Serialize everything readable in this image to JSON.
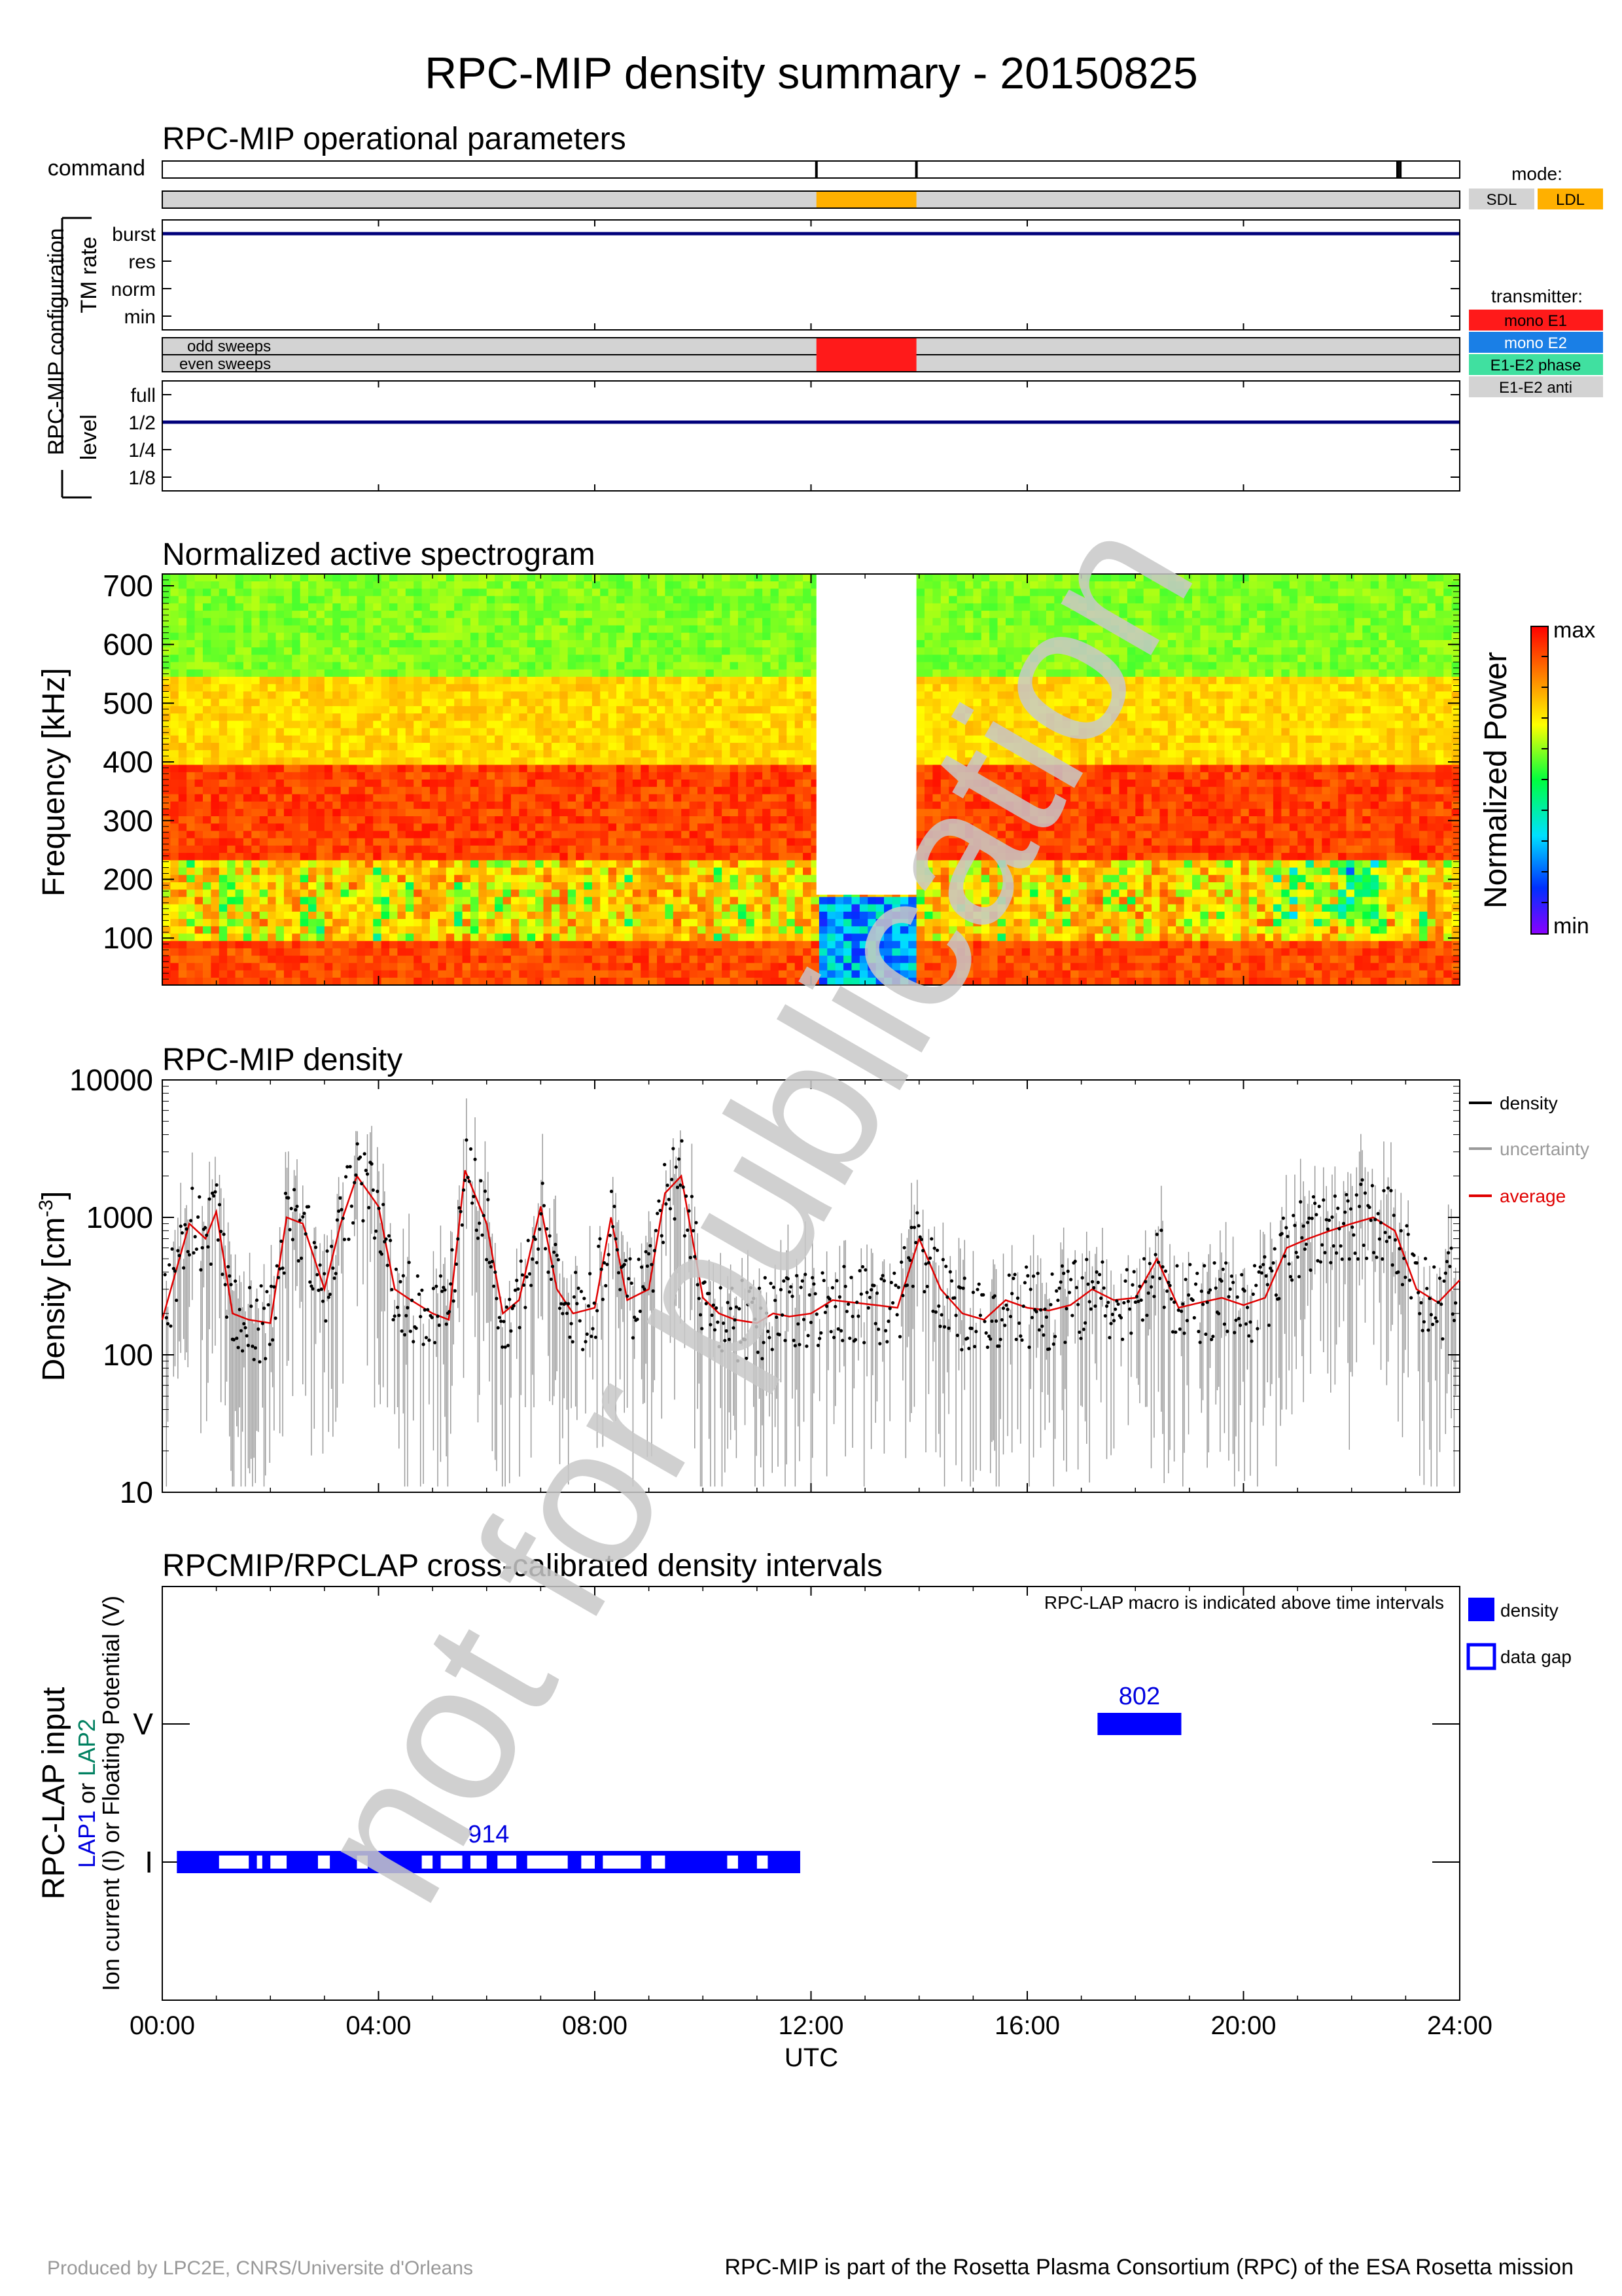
{
  "title": "RPC-MIP density summary - 20150825",
  "time_axis": {
    "label": "UTC",
    "ticks": [
      "00:00",
      "04:00",
      "08:00",
      "12:00",
      "16:00",
      "20:00",
      "24:00"
    ],
    "range_hours": [
      0,
      24
    ]
  },
  "ops": {
    "title": "RPC-MIP operational parameters",
    "command_label": "command",
    "config_label": "RPC-MIP configuration",
    "tm_rate_label": "TM rate",
    "tm_levels": [
      "burst",
      "res",
      "norm",
      "min"
    ],
    "sweep_labels": [
      "odd sweeps",
      "even sweeps"
    ],
    "level_label": "level",
    "level_levels": [
      "full",
      "1/2",
      "1/4",
      "1/8"
    ],
    "command_marks_hours": [
      12.1,
      13.95,
      22.85,
      22.9
    ],
    "mode_ldl_interval_hours": [
      12.1,
      13.95
    ],
    "transmitter_e1_interval_hours": [
      12.1,
      13.95
    ],
    "tm_rate_value": "burst",
    "level_value": "1/2",
    "mode_legend": {
      "title": "mode:",
      "items": [
        {
          "label": "SDL",
          "color": "#d3d3d3"
        },
        {
          "label": "LDL",
          "color": "#ffb000"
        }
      ]
    },
    "transmitter_legend": {
      "title": "transmitter:",
      "items": [
        {
          "label": "mono E1",
          "color": "#ff1a1a"
        },
        {
          "label": "mono E2",
          "color": "#1a7fe6"
        },
        {
          "label": "E1-E2 phase",
          "color": "#40e0a0"
        },
        {
          "label": "E1-E2 anti",
          "color": "#d3d3d3"
        }
      ]
    }
  },
  "spectrogram": {
    "title": "Normalized active spectrogram",
    "ylabel": "Frequency [kHz]",
    "yticks": [
      100,
      200,
      300,
      400,
      500,
      600,
      700
    ],
    "ylim": [
      20,
      720
    ],
    "gap_hours": [
      12.1,
      13.95
    ],
    "gap_floor_khz": 175,
    "colorbar_label": "Normalized Power",
    "colorbar_max": "max",
    "colorbar_min": "min"
  },
  "chart_data": [
    {
      "type": "line",
      "title": "RPC-MIP density",
      "xlabel": "UTC",
      "ylabel": "Density [cm",
      "ylabel_sup": "-3",
      "ylabel_tail": "]",
      "yscale": "log",
      "ylim": [
        10,
        10000
      ],
      "yticks": [
        "10",
        "100",
        "1000",
        "10000"
      ],
      "xlim": [
        0,
        24
      ],
      "legend": [
        {
          "name": "density",
          "color": "#000000"
        },
        {
          "name": "uncertainty",
          "color": "#9a9a9a"
        },
        {
          "name": "average",
          "color": "#e00000"
        }
      ],
      "series": [
        {
          "name": "average",
          "x": [
            0,
            0.5,
            0.8,
            1.0,
            1.3,
            1.6,
            2.0,
            2.3,
            2.6,
            3.0,
            3.3,
            3.6,
            4.0,
            4.3,
            4.6,
            5.0,
            5.3,
            5.6,
            6.0,
            6.3,
            6.6,
            7.0,
            7.3,
            7.6,
            8.0,
            8.3,
            8.6,
            9.0,
            9.3,
            9.6,
            10.0,
            10.3,
            10.6,
            11.0,
            11.3,
            11.6,
            12.0,
            12.4,
            12.8,
            13.2,
            13.6,
            14.0,
            14.4,
            14.8,
            15.2,
            15.6,
            16.0,
            16.4,
            16.8,
            17.2,
            17.6,
            18.0,
            18.4,
            18.8,
            19.2,
            19.6,
            20.0,
            20.4,
            20.8,
            21.2,
            21.6,
            22.0,
            22.4,
            22.8,
            23.2,
            23.6,
            24.0
          ],
          "y": [
            180,
            900,
            700,
            1100,
            200,
            180,
            170,
            1000,
            900,
            300,
            900,
            2000,
            1200,
            300,
            250,
            200,
            180,
            2200,
            900,
            200,
            250,
            1200,
            300,
            200,
            220,
            1000,
            250,
            300,
            1500,
            2000,
            260,
            200,
            180,
            170,
            200,
            190,
            200,
            250,
            240,
            230,
            220,
            700,
            300,
            200,
            180,
            250,
            220,
            210,
            230,
            300,
            250,
            260,
            500,
            220,
            240,
            260,
            230,
            260,
            600,
            700,
            800,
            900,
            1000,
            800,
            300,
            240,
            350
          ]
        },
        {
          "name": "density",
          "note": "scattered samples follow the average"
        }
      ]
    }
  ],
  "lap": {
    "title": "RPCMIP/RPCLAP cross-calibrated density intervals",
    "ylabel_main": "RPC-LAP input",
    "ylabel_lap1": "LAP1",
    "ylabel_or": " or ",
    "ylabel_lap2": "LAP2",
    "ylabel_line3": "Ion current (I) or Floating Potential (V)",
    "yticks": [
      "V",
      "I"
    ],
    "note": "RPC-LAP macro is indicated above time intervals",
    "legend": [
      {
        "label": "density",
        "style": "filled"
      },
      {
        "label": "data gap",
        "style": "outline"
      }
    ],
    "intervals": [
      {
        "level": "I",
        "start": 0.27,
        "end": 11.8,
        "macro": "914",
        "gaps": [
          [
            1.05,
            1.6
          ],
          [
            1.75,
            1.85
          ],
          [
            2.0,
            2.3
          ],
          [
            2.88,
            3.1
          ],
          [
            3.6,
            3.8
          ],
          [
            4.8,
            5.0
          ],
          [
            5.15,
            5.55
          ],
          [
            5.7,
            6.0
          ],
          [
            6.2,
            6.55
          ],
          [
            6.75,
            7.5
          ],
          [
            7.75,
            8.0
          ],
          [
            8.15,
            8.85
          ],
          [
            9.05,
            9.3
          ],
          [
            10.45,
            10.65
          ],
          [
            11.0,
            11.2
          ]
        ]
      },
      {
        "level": "V",
        "start": 17.3,
        "end": 18.85,
        "macro": "802",
        "gaps": []
      }
    ]
  },
  "watermark": "not for publication",
  "footer": {
    "left": "Produced by LPC2E, CNRS/Universite d'Orleans",
    "right": "RPC-MIP is part of the Rosetta Plasma Consortium (RPC) of the ESA Rosetta mission"
  }
}
